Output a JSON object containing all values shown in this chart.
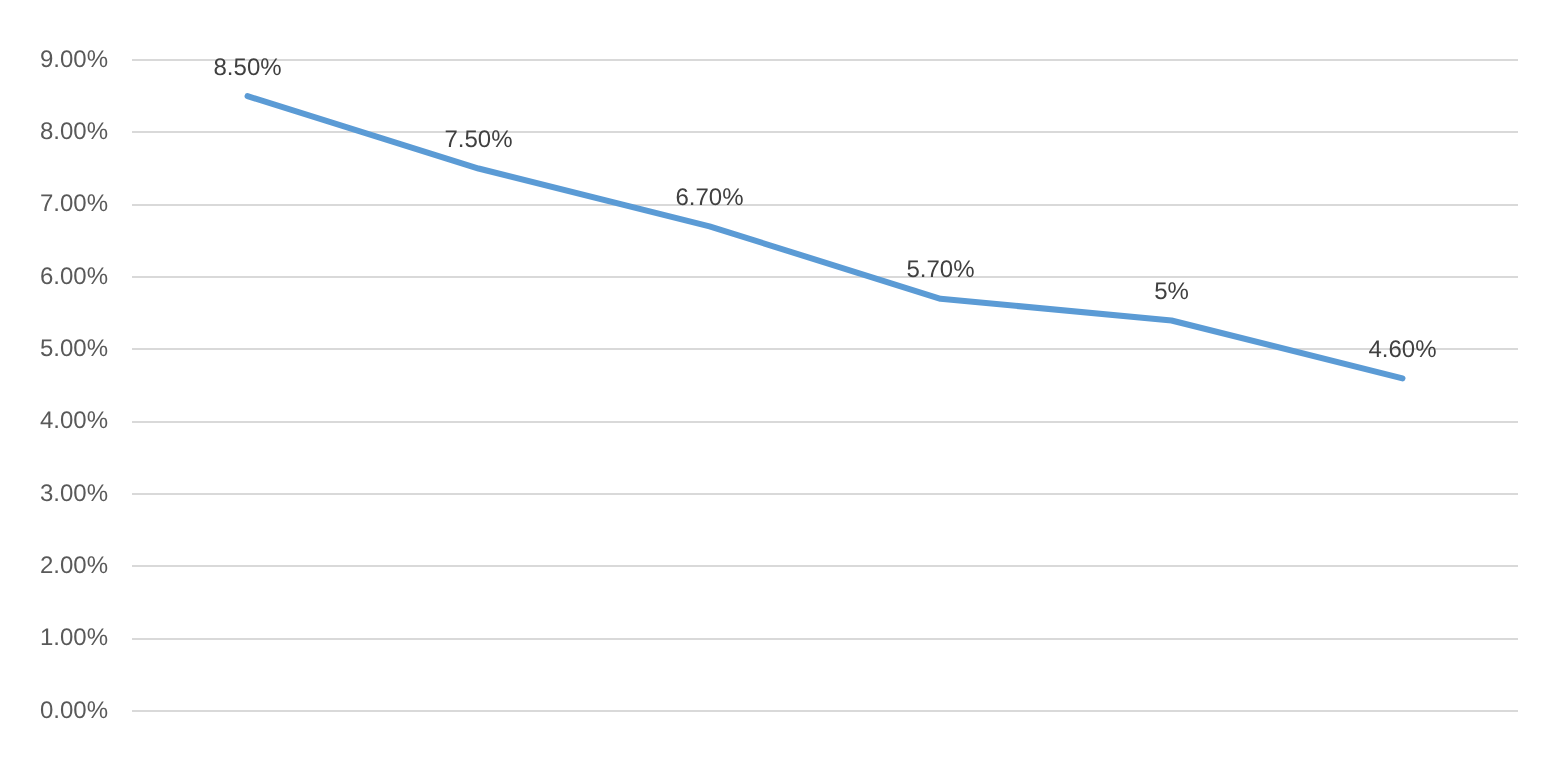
{
  "chart_data": {
    "type": "line",
    "categories": [
      null,
      null,
      null,
      null,
      null,
      null
    ],
    "series": [
      {
        "color": "#5b9bd5",
        "values": [
          8.5,
          7.5,
          6.7,
          5.7,
          5.4,
          4.6
        ]
      }
    ],
    "value_labels": [
      "8.50%",
      "7.50%",
      "6.70%",
      "5.70%",
      "5%",
      "4.60%"
    ],
    "ylim": [
      0,
      9
    ],
    "yticks": [
      {
        "value": 0,
        "label": "0.00%"
      },
      {
        "value": 1,
        "label": "1.00%"
      },
      {
        "value": 2,
        "label": "2.00%"
      },
      {
        "value": 3,
        "label": "3.00%"
      },
      {
        "value": 4,
        "label": "4.00%"
      },
      {
        "value": 5,
        "label": "5.00%"
      },
      {
        "value": 6,
        "label": "6.00%"
      },
      {
        "value": 7,
        "label": "7.00%"
      },
      {
        "value": 8,
        "label": "8.00%"
      },
      {
        "value": 9,
        "label": "9.00%"
      }
    ],
    "grid": "y",
    "legend": false,
    "marker": "none",
    "line_style": "solid"
  }
}
